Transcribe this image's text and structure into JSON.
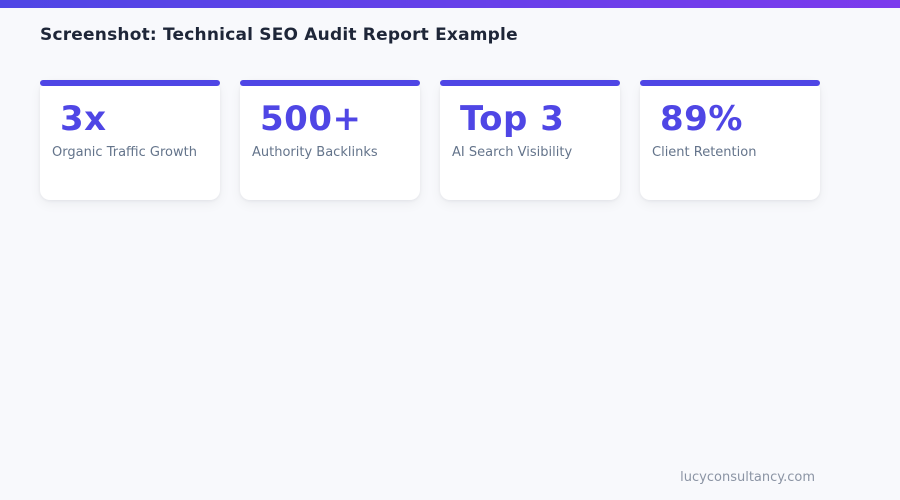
{
  "page": {
    "title": "Screenshot: Technical SEO Audit Report Example",
    "footer": "lucyconsultancy.com"
  },
  "colors": {
    "top_bar_gradient_start": "#4f46e5",
    "top_bar_gradient_end": "#7c3aed",
    "background": "#f8f9fc",
    "card_background": "#ffffff",
    "card_accent": "#4f46e5",
    "title_text": "#1e2638",
    "stat_value_text": "#4f46e5",
    "stat_label_text": "#64748b",
    "footer_text": "#8b94a4"
  },
  "stats": [
    {
      "value": "3x",
      "label": "Organic Traffic Growth"
    },
    {
      "value": "500+",
      "label": "Authority Backlinks"
    },
    {
      "value": "Top 3",
      "label": "AI Search Visibility"
    },
    {
      "value": "89%",
      "label": "Client Retention"
    }
  ]
}
